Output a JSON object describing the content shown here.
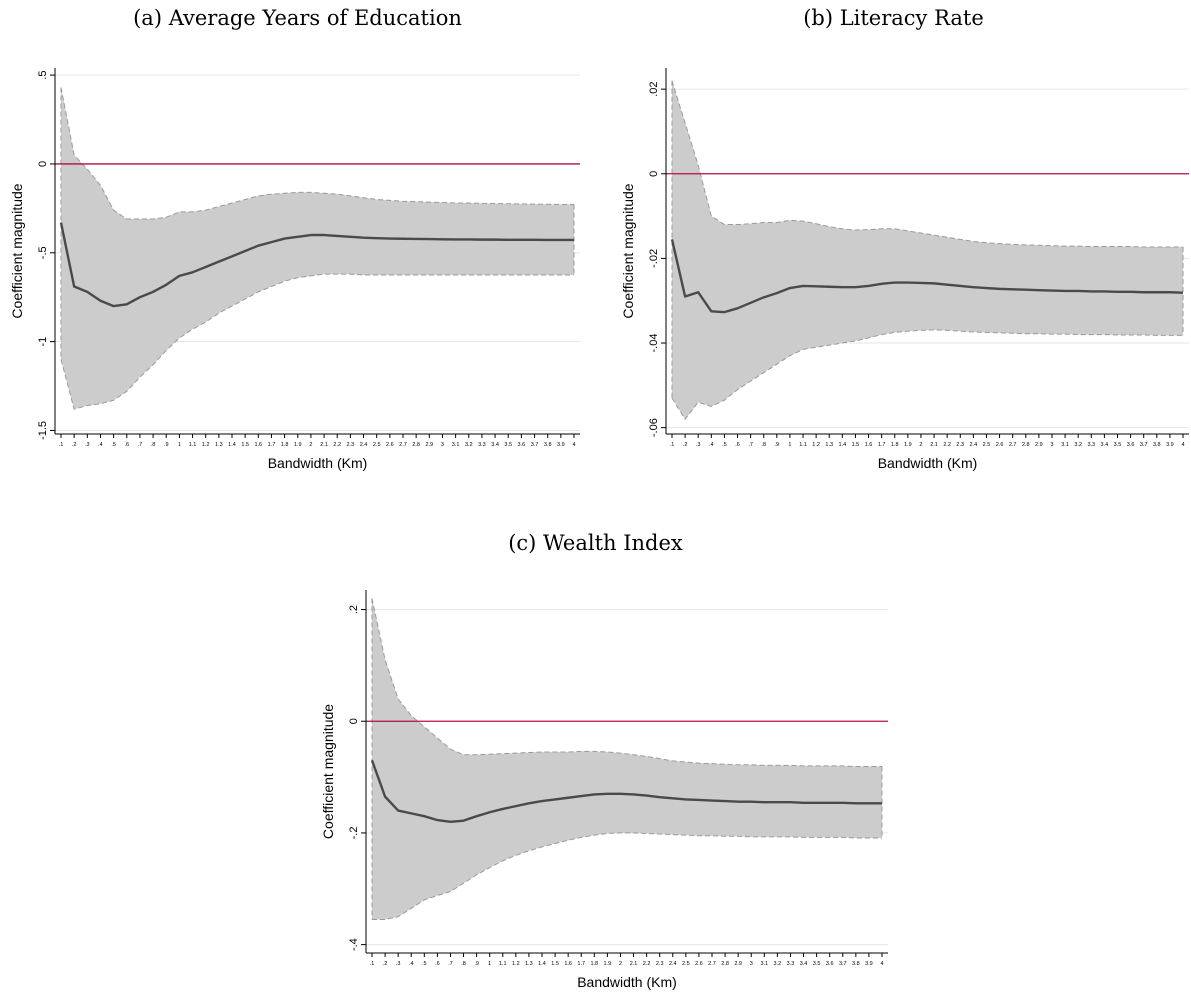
{
  "chart_data": [
    {
      "type": "line",
      "title": "(a) Average Years of Education",
      "xlabel": "Bandwidth (Km)",
      "ylabel": "Coefficient magnitude",
      "x_tick_labels": [
        ".1",
        ".2",
        ".3",
        ".4",
        ".5",
        ".6",
        ".7",
        ".8",
        ".9",
        "1",
        "1.1",
        "1.2",
        "1.3",
        "1.4",
        "1.5",
        "1.6",
        "1.7",
        "1.8",
        "1.9",
        "2",
        "2.1",
        "2.2",
        "2.3",
        "2.4",
        "2.5",
        "2.6",
        "2.7",
        "2.8",
        "2.9",
        "3",
        "3.1",
        "3.2",
        "3.3",
        "3.4",
        "3.5",
        "3.6",
        "3.7",
        "3.8",
        "3.9",
        "4"
      ],
      "y_ticks": [
        {
          "value": 0.5,
          "label": ".5"
        },
        {
          "value": 0,
          "label": "0"
        },
        {
          "value": -0.5,
          "label": "-.5"
        },
        {
          "value": -1,
          "label": "-1"
        },
        {
          "value": -1.5,
          "label": "-1.5"
        }
      ],
      "ylim": [
        -1.52,
        0.54
      ],
      "reference_line": 0,
      "x": [
        0.1,
        0.2,
        0.3,
        0.4,
        0.5,
        0.6,
        0.7,
        0.8,
        0.9,
        1.0,
        1.1,
        1.2,
        1.3,
        1.4,
        1.5,
        1.6,
        1.7,
        1.8,
        1.9,
        2.0,
        2.1,
        2.2,
        2.3,
        2.4,
        2.5,
        2.6,
        2.7,
        2.8,
        2.9,
        3.0,
        3.1,
        3.2,
        3.3,
        3.4,
        3.5,
        3.6,
        3.7,
        3.8,
        3.9,
        4.0
      ],
      "estimate": [
        -0.33,
        -0.69,
        -0.72,
        -0.77,
        -0.8,
        -0.79,
        -0.75,
        -0.72,
        -0.68,
        -0.63,
        -0.61,
        -0.58,
        -0.55,
        -0.52,
        -0.49,
        -0.46,
        -0.44,
        -0.42,
        -0.41,
        -0.4,
        -0.4,
        -0.405,
        -0.41,
        -0.415,
        -0.418,
        -0.42,
        -0.421,
        -0.422,
        -0.423,
        -0.424,
        -0.425,
        -0.425,
        -0.426,
        -0.426,
        -0.427,
        -0.427,
        -0.427,
        -0.428,
        -0.428,
        -0.428
      ],
      "upper": [
        0.43,
        0.05,
        -0.03,
        -0.12,
        -0.26,
        -0.31,
        -0.31,
        -0.31,
        -0.3,
        -0.27,
        -0.27,
        -0.26,
        -0.24,
        -0.22,
        -0.2,
        -0.18,
        -0.17,
        -0.165,
        -0.16,
        -0.16,
        -0.165,
        -0.17,
        -0.18,
        -0.19,
        -0.2,
        -0.205,
        -0.21,
        -0.212,
        -0.215,
        -0.217,
        -0.22,
        -0.22,
        -0.222,
        -0.223,
        -0.224,
        -0.225,
        -0.226,
        -0.227,
        -0.228,
        -0.228
      ],
      "lower": [
        -1.1,
        -1.38,
        -1.36,
        -1.35,
        -1.33,
        -1.28,
        -1.2,
        -1.13,
        -1.05,
        -0.98,
        -0.93,
        -0.89,
        -0.84,
        -0.8,
        -0.76,
        -0.72,
        -0.69,
        -0.66,
        -0.64,
        -0.63,
        -0.62,
        -0.62,
        -0.62,
        -0.625,
        -0.625,
        -0.625,
        -0.625,
        -0.625,
        -0.625,
        -0.625,
        -0.625,
        -0.625,
        -0.625,
        -0.625,
        -0.625,
        -0.625,
        -0.625,
        -0.625,
        -0.625,
        -0.625
      ]
    },
    {
      "type": "line",
      "title": "(b) Literacy Rate",
      "xlabel": "Bandwidth (Km)",
      "ylabel": "Coefficient magnitude",
      "x_tick_labels": [
        ".1",
        ".2",
        ".3",
        ".4",
        ".5",
        ".6",
        ".7",
        ".8",
        ".9",
        "1",
        "1.1",
        "1.2",
        "1.3",
        "1.4",
        "1.5",
        "1.6",
        "1.7",
        "1.8",
        "1.9",
        "2",
        "2.1",
        "2.2",
        "2.3",
        "2.4",
        "2.5",
        "2.6",
        "2.7",
        "2.8",
        "2.9",
        "3",
        "3.1",
        "3.2",
        "3.3",
        "3.4",
        "3.5",
        "3.6",
        "3.7",
        "3.8",
        "3.9",
        "4"
      ],
      "y_ticks": [
        {
          "value": 0.02,
          "label": ".02"
        },
        {
          "value": 0,
          "label": "0"
        },
        {
          "value": -0.02,
          "label": "-.02"
        },
        {
          "value": -0.04,
          "label": "-.04"
        },
        {
          "value": -0.06,
          "label": "-.06"
        }
      ],
      "ylim": [
        -0.0615,
        0.025
      ],
      "reference_line": 0,
      "x": [
        0.1,
        0.2,
        0.3,
        0.4,
        0.5,
        0.6,
        0.7,
        0.8,
        0.9,
        1.0,
        1.1,
        1.2,
        1.3,
        1.4,
        1.5,
        1.6,
        1.7,
        1.8,
        1.9,
        2.0,
        2.1,
        2.2,
        2.3,
        2.4,
        2.5,
        2.6,
        2.7,
        2.8,
        2.9,
        3.0,
        3.1,
        3.2,
        3.3,
        3.4,
        3.5,
        3.6,
        3.7,
        3.8,
        3.9,
        4.0
      ],
      "estimate": [
        -0.0155,
        -0.029,
        -0.028,
        -0.0325,
        -0.0327,
        -0.0318,
        -0.0305,
        -0.0292,
        -0.0282,
        -0.027,
        -0.0265,
        -0.0266,
        -0.0267,
        -0.0268,
        -0.0268,
        -0.0265,
        -0.026,
        -0.0257,
        -0.0257,
        -0.0258,
        -0.0259,
        -0.0262,
        -0.0265,
        -0.0268,
        -0.027,
        -0.0272,
        -0.0273,
        -0.0274,
        -0.0275,
        -0.0276,
        -0.0277,
        -0.0277,
        -0.0278,
        -0.0278,
        -0.0279,
        -0.0279,
        -0.028,
        -0.028,
        -0.028,
        -0.0281
      ],
      "upper": [
        0.022,
        0.012,
        0.002,
        -0.01,
        -0.012,
        -0.012,
        -0.0118,
        -0.0115,
        -0.0115,
        -0.011,
        -0.0112,
        -0.0118,
        -0.0125,
        -0.013,
        -0.0133,
        -0.0132,
        -0.013,
        -0.013,
        -0.0135,
        -0.014,
        -0.0145,
        -0.015,
        -0.0155,
        -0.016,
        -0.0163,
        -0.0165,
        -0.0167,
        -0.0168,
        -0.0169,
        -0.017,
        -0.0171,
        -0.0171,
        -0.0172,
        -0.0172,
        -0.0172,
        -0.0172,
        -0.0173,
        -0.0173,
        -0.0173,
        -0.0173
      ],
      "lower": [
        -0.053,
        -0.058,
        -0.054,
        -0.055,
        -0.0535,
        -0.051,
        -0.049,
        -0.047,
        -0.045,
        -0.043,
        -0.0415,
        -0.041,
        -0.0405,
        -0.04,
        -0.0395,
        -0.0388,
        -0.038,
        -0.0375,
        -0.0372,
        -0.037,
        -0.0369,
        -0.037,
        -0.0372,
        -0.0374,
        -0.0375,
        -0.0376,
        -0.0377,
        -0.0378,
        -0.0378,
        -0.0379,
        -0.0379,
        -0.038,
        -0.038,
        -0.038,
        -0.0381,
        -0.0381,
        -0.0381,
        -0.0382,
        -0.0382,
        -0.0382
      ]
    },
    {
      "type": "line",
      "title": "(c) Wealth Index",
      "xlabel": "Bandwidth (Km)",
      "ylabel": "Coefficient magnitude",
      "x_tick_labels": [
        ".1",
        ".2",
        ".3",
        ".4",
        ".5",
        ".6",
        ".7",
        ".8",
        ".9",
        "1",
        "1.1",
        "1.2",
        "1.3",
        "1.4",
        "1.5",
        "1.6",
        "1.7",
        "1.8",
        "1.9",
        "2",
        "2.1",
        "2.2",
        "2.3",
        "2.4",
        "2.5",
        "2.6",
        "2.7",
        "2.8",
        "2.9",
        "3",
        "3.1",
        "3.2",
        "3.3",
        "3.4",
        "3.5",
        "3.6",
        "3.7",
        "3.8",
        "3.9",
        "4"
      ],
      "y_ticks": [
        {
          "value": 0.2,
          "label": ".2"
        },
        {
          "value": 0,
          "label": "0"
        },
        {
          "value": -0.2,
          "label": "-.2"
        },
        {
          "value": -0.4,
          "label": "-.4"
        }
      ],
      "ylim": [
        -0.415,
        0.235
      ],
      "reference_line": 0,
      "x": [
        0.1,
        0.2,
        0.3,
        0.4,
        0.5,
        0.6,
        0.7,
        0.8,
        0.9,
        1.0,
        1.1,
        1.2,
        1.3,
        1.4,
        1.5,
        1.6,
        1.7,
        1.8,
        1.9,
        2.0,
        2.1,
        2.2,
        2.3,
        2.4,
        2.5,
        2.6,
        2.7,
        2.8,
        2.9,
        3.0,
        3.1,
        3.2,
        3.3,
        3.4,
        3.5,
        3.6,
        3.7,
        3.8,
        3.9,
        4.0
      ],
      "estimate": [
        -0.07,
        -0.135,
        -0.16,
        -0.165,
        -0.17,
        -0.177,
        -0.18,
        -0.178,
        -0.17,
        -0.163,
        -0.157,
        -0.152,
        -0.147,
        -0.143,
        -0.14,
        -0.137,
        -0.134,
        -0.131,
        -0.13,
        -0.13,
        -0.131,
        -0.133,
        -0.136,
        -0.138,
        -0.14,
        -0.141,
        -0.142,
        -0.143,
        -0.144,
        -0.144,
        -0.145,
        -0.145,
        -0.145,
        -0.146,
        -0.146,
        -0.146,
        -0.146,
        -0.147,
        -0.147,
        -0.147
      ],
      "upper": [
        0.22,
        0.11,
        0.04,
        0.01,
        -0.01,
        -0.03,
        -0.05,
        -0.06,
        -0.06,
        -0.059,
        -0.058,
        -0.057,
        -0.056,
        -0.055,
        -0.055,
        -0.055,
        -0.054,
        -0.054,
        -0.055,
        -0.057,
        -0.06,
        -0.063,
        -0.067,
        -0.071,
        -0.073,
        -0.075,
        -0.076,
        -0.077,
        -0.078,
        -0.078,
        -0.079,
        -0.079,
        -0.079,
        -0.08,
        -0.08,
        -0.08,
        -0.08,
        -0.081,
        -0.081,
        -0.081
      ],
      "lower": [
        -0.355,
        -0.355,
        -0.35,
        -0.335,
        -0.32,
        -0.312,
        -0.305,
        -0.29,
        -0.275,
        -0.262,
        -0.25,
        -0.24,
        -0.232,
        -0.225,
        -0.219,
        -0.213,
        -0.208,
        -0.204,
        -0.201,
        -0.2,
        -0.2,
        -0.201,
        -0.202,
        -0.203,
        -0.204,
        -0.205,
        -0.205,
        -0.206,
        -0.206,
        -0.207,
        -0.207,
        -0.207,
        -0.207,
        -0.208,
        -0.208,
        -0.208,
        -0.208,
        -0.209,
        -0.209,
        -0.209
      ]
    }
  ]
}
